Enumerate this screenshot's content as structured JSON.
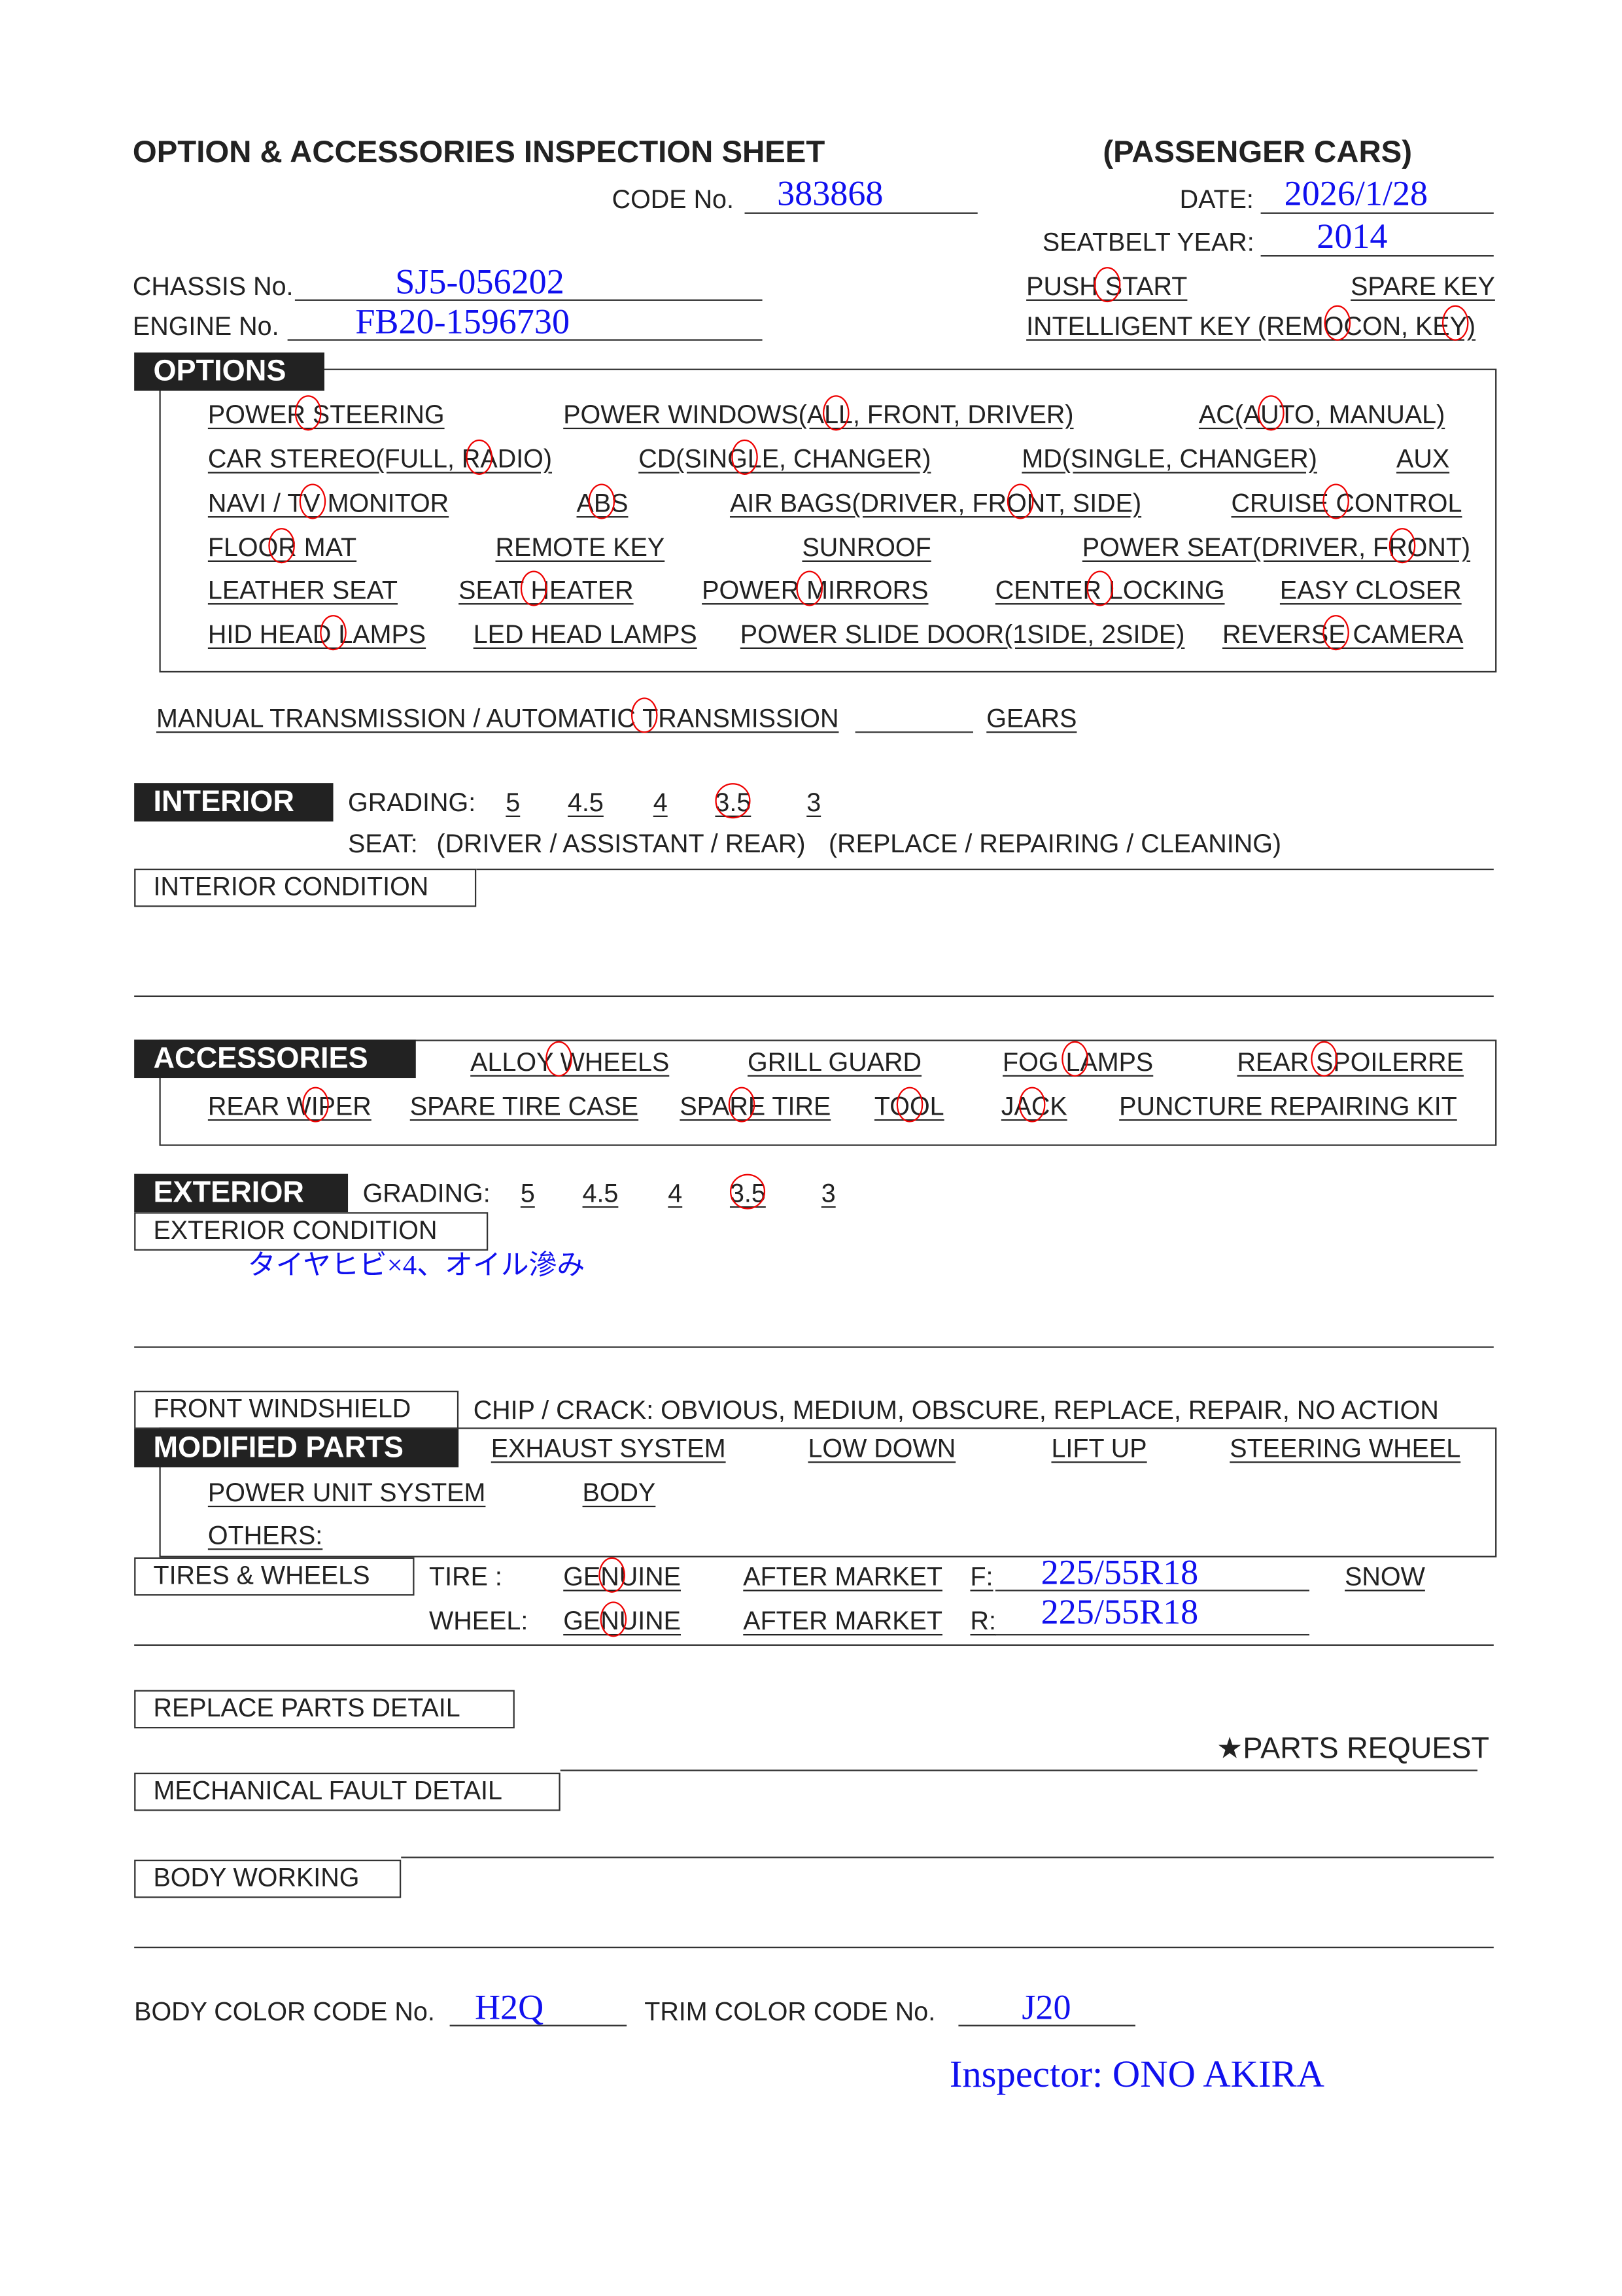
{
  "header": {
    "title": "OPTION & ACCESSORIES INSPECTION SHEET",
    "category": "(PASSENGER CARS)",
    "code_label": "CODE No.",
    "code_value": "383868",
    "date_label": "DATE:",
    "date_value": "2026/1/28",
    "seatbelt_label": "SEATBELT YEAR:",
    "seatbelt_value": "2014",
    "chassis_label": "CHASSIS No.",
    "chassis_value": "SJ5-056202",
    "engine_label": "ENGINE No.",
    "engine_value": "FB20-1596730",
    "push_start": {
      "label": "PUSH START",
      "circled": true
    },
    "spare_key": {
      "label": "SPARE KEY",
      "circled": false
    },
    "intelligent_key": {
      "label": "INTELLIGENT KEY (REMOCON, KEY)",
      "circled": [
        "REMOCON",
        "KEY"
      ]
    }
  },
  "options": {
    "title": "OPTIONS",
    "rows": [
      [
        {
          "label": "POWER STEERING",
          "circled": true
        },
        {
          "label": "POWER WINDOWS(ALL, FRONT, DRIVER)",
          "circled": "ALL"
        },
        {
          "label": "AC(AUTO, MANUAL)",
          "circled": "AUTO"
        }
      ],
      [
        {
          "label": "CAR STEREO(FULL, RADIO)",
          "circled": "RADIO"
        },
        {
          "label": "CD(SINGLE, CHANGER)",
          "circled": "SINGLE"
        },
        {
          "label": "MD(SINGLE, CHANGER)",
          "circled": false
        },
        {
          "label": "AUX",
          "circled": false
        }
      ],
      [
        {
          "label": "NAVI / TV MONITOR",
          "circled": "TV"
        },
        {
          "label": "ABS",
          "circled": true
        },
        {
          "label": "AIR BAGS(DRIVER, FRONT, SIDE)",
          "circled": "FRONT"
        },
        {
          "label": "CRUISE CONTROL",
          "circled": true
        }
      ],
      [
        {
          "label": "FLOOR MAT",
          "circled": true
        },
        {
          "label": "REMOTE KEY",
          "circled": false
        },
        {
          "label": "SUNROOF",
          "circled": false
        },
        {
          "label": "POWER SEAT(DRIVER, FRONT)",
          "circled": "FRONT"
        }
      ],
      [
        {
          "label": "LEATHER SEAT",
          "circled": false
        },
        {
          "label": "SEAT HEATER",
          "circled": true
        },
        {
          "label": "POWER MIRRORS",
          "circled": true
        },
        {
          "label": "CENTER LOCKING",
          "circled": true
        },
        {
          "label": "EASY CLOSER",
          "circled": false
        }
      ],
      [
        {
          "label": "HID HEAD LAMPS",
          "circled": true
        },
        {
          "label": "LED HEAD LAMPS",
          "circled": false
        },
        {
          "label": "POWER SLIDE DOOR(1SIDE,  2SIDE)",
          "circled": false
        },
        {
          "label": "REVERSE CAMERA",
          "circled": true
        }
      ]
    ]
  },
  "transmission": {
    "label": "MANUAL TRANSMISSION / AUTOMATIC TRANSMISSION",
    "circled": "AUTOMATIC",
    "gears_label": "GEARS"
  },
  "interior": {
    "title": "INTERIOR",
    "grading_label": "GRADING:",
    "grades": [
      "5",
      "4.5",
      "4",
      "3.5",
      "3"
    ],
    "selected_grade": "3.5",
    "seat_label": "SEAT:",
    "seat_positions": "(DRIVER / ASSISTANT / REAR)",
    "seat_actions": "(REPLACE / REPAIRING / CLEANING)",
    "condition_label": "INTERIOR CONDITION"
  },
  "accessories": {
    "title": "ACCESSORIES",
    "rows": [
      [
        {
          "label": "ALLOY WHEELS",
          "circled": true
        },
        {
          "label": "GRILL GUARD",
          "circled": false
        },
        {
          "label": "FOG LAMPS",
          "circled": true
        },
        {
          "label": "REAR SPOILERRE",
          "circled": true
        }
      ],
      [
        {
          "label": "REAR WIPER",
          "circled": true
        },
        {
          "label": "SPARE TIRE CASE",
          "circled": false
        },
        {
          "label": "SPARE TIRE",
          "circled": true
        },
        {
          "label": "TOOL",
          "circled": true
        },
        {
          "label": "JACK",
          "circled": true
        },
        {
          "label": "PUNCTURE REPAIRING KIT",
          "circled": false
        }
      ]
    ]
  },
  "exterior": {
    "title": "EXTERIOR",
    "grading_label": "GRADING:",
    "grades": [
      "5",
      "4.5",
      "4",
      "3.5",
      "3"
    ],
    "selected_grade": "3.5",
    "condition_label": "EXTERIOR CONDITION",
    "condition_note": "タイヤヒビ×4、オイル滲み"
  },
  "windshield": {
    "label": "FRONT WINDSHIELD",
    "text": "CHIP / CRACK:  OBVIOUS,  MEDIUM,  OBSCURE,  REPLACE,  REPAIR,  NO ACTION"
  },
  "modified": {
    "title": "MODIFIED PARTS",
    "items": [
      "EXHAUST SYSTEM",
      "LOW DOWN",
      "LIFT UP",
      "STEERING WHEEL",
      "POWER UNIT SYSTEM",
      "BODY",
      "OTHERS:"
    ]
  },
  "tires": {
    "label": "TIRES & WHEELS",
    "tire_label": "TIRE :",
    "wheel_label": "WHEEL:",
    "genuine": "GENUINE",
    "after_market": "AFTER MARKET",
    "tire_circled": "GENUINE",
    "wheel_circled": "GENUINE",
    "front_label": "F:",
    "front_value": "225/55R18",
    "rear_label": "R:",
    "rear_value": "225/55R18",
    "snow": "SNOW"
  },
  "details": {
    "replace": "REPLACE PARTS DETAIL",
    "parts_request": "★PARTS REQUEST",
    "mechanical": "MECHANICAL FAULT DETAIL",
    "body_working": "BODY WORKING"
  },
  "colors": {
    "body_label": "BODY COLOR CODE No.",
    "body_value": "H2Q",
    "trim_label": "TRIM COLOR CODE No.",
    "trim_value": "J20"
  },
  "inspector": "Inspector: ONO AKIRA",
  "ink": {
    "handwriting": "#1010ee",
    "circle": "#e00000",
    "text": "#222222"
  }
}
